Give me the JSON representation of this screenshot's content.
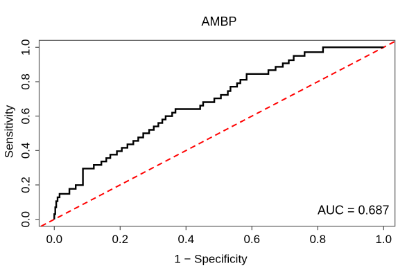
{
  "chart_data": {
    "type": "line",
    "subtype": "roc_step_curve",
    "title": "AMBP",
    "xlabel": "1 − Specificity",
    "ylabel": "Sensitivity",
    "xlim": [
      0,
      1
    ],
    "ylim": [
      0,
      1
    ],
    "x_ticks": [
      0.0,
      0.2,
      0.4,
      0.6,
      0.8,
      1.0
    ],
    "y_ticks": [
      0.0,
      0.2,
      0.4,
      0.6,
      0.8,
      1.0
    ],
    "x_tick_labels": [
      "0.0",
      "0.2",
      "0.4",
      "0.6",
      "0.8",
      "1.0"
    ],
    "y_tick_labels": [
      "0.0",
      "0.2",
      "0.4",
      "0.6",
      "0.8",
      "1.0"
    ],
    "grid": false,
    "legend": false,
    "background": "#ffffff",
    "annotations": [
      {
        "text": "AUC = 0.687",
        "value": 0.687,
        "position": "bottom-right"
      }
    ],
    "series": [
      {
        "name": "chance_diagonal",
        "style": "dashed",
        "color": "#ff0000",
        "linewidth": 2,
        "abline": {
          "slope": 1,
          "intercept": 0
        },
        "points": [
          [
            0,
            0
          ],
          [
            1,
            1
          ]
        ]
      },
      {
        "name": "roc_curve",
        "style": "step",
        "color": "#000000",
        "linewidth": 2.4,
        "points": [
          [
            0.0,
            0.0
          ],
          [
            0.0,
            0.03
          ],
          [
            0.003,
            0.03
          ],
          [
            0.003,
            0.07
          ],
          [
            0.006,
            0.07
          ],
          [
            0.006,
            0.105
          ],
          [
            0.01,
            0.105
          ],
          [
            0.01,
            0.128
          ],
          [
            0.016,
            0.128
          ],
          [
            0.016,
            0.148
          ],
          [
            0.023,
            0.148
          ],
          [
            0.046,
            0.148
          ],
          [
            0.046,
            0.177
          ],
          [
            0.065,
            0.177
          ],
          [
            0.065,
            0.199
          ],
          [
            0.087,
            0.199
          ],
          [
            0.087,
            0.295
          ],
          [
            0.12,
            0.295
          ],
          [
            0.12,
            0.316
          ],
          [
            0.143,
            0.316
          ],
          [
            0.143,
            0.336
          ],
          [
            0.158,
            0.336
          ],
          [
            0.158,
            0.356
          ],
          [
            0.17,
            0.356
          ],
          [
            0.17,
            0.376
          ],
          [
            0.19,
            0.376
          ],
          [
            0.19,
            0.396
          ],
          [
            0.205,
            0.396
          ],
          [
            0.205,
            0.416
          ],
          [
            0.222,
            0.416
          ],
          [
            0.222,
            0.436
          ],
          [
            0.24,
            0.436
          ],
          [
            0.24,
            0.456
          ],
          [
            0.255,
            0.456
          ],
          [
            0.255,
            0.476
          ],
          [
            0.27,
            0.476
          ],
          [
            0.27,
            0.5
          ],
          [
            0.288,
            0.5
          ],
          [
            0.288,
            0.52
          ],
          [
            0.302,
            0.52
          ],
          [
            0.302,
            0.54
          ],
          [
            0.316,
            0.54
          ],
          [
            0.316,
            0.56
          ],
          [
            0.328,
            0.56
          ],
          [
            0.328,
            0.58
          ],
          [
            0.338,
            0.58
          ],
          [
            0.338,
            0.6
          ],
          [
            0.358,
            0.6
          ],
          [
            0.358,
            0.62
          ],
          [
            0.368,
            0.62
          ],
          [
            0.368,
            0.641
          ],
          [
            0.443,
            0.641
          ],
          [
            0.443,
            0.661
          ],
          [
            0.452,
            0.661
          ],
          [
            0.452,
            0.681
          ],
          [
            0.486,
            0.681
          ],
          [
            0.486,
            0.703
          ],
          [
            0.506,
            0.703
          ],
          [
            0.506,
            0.723
          ],
          [
            0.527,
            0.723
          ],
          [
            0.527,
            0.745
          ],
          [
            0.535,
            0.745
          ],
          [
            0.535,
            0.771
          ],
          [
            0.555,
            0.771
          ],
          [
            0.555,
            0.791
          ],
          [
            0.565,
            0.791
          ],
          [
            0.565,
            0.811
          ],
          [
            0.584,
            0.811
          ],
          [
            0.584,
            0.845
          ],
          [
            0.65,
            0.845
          ],
          [
            0.65,
            0.867
          ],
          [
            0.672,
            0.867
          ],
          [
            0.672,
            0.887
          ],
          [
            0.694,
            0.887
          ],
          [
            0.694,
            0.907
          ],
          [
            0.712,
            0.907
          ],
          [
            0.712,
            0.925
          ],
          [
            0.727,
            0.925
          ],
          [
            0.727,
            0.95
          ],
          [
            0.76,
            0.95
          ],
          [
            0.76,
            0.972
          ],
          [
            0.816,
            0.972
          ],
          [
            0.816,
            1.0
          ],
          [
            1.0,
            1.0
          ]
        ]
      }
    ]
  }
}
